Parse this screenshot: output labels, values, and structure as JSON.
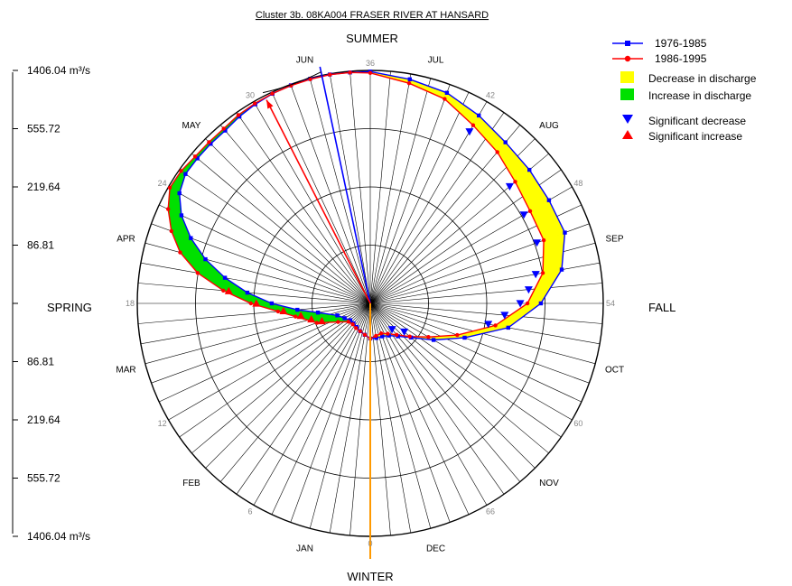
{
  "chart_data": {
    "type": "polar-line",
    "title": "Cluster 3b. 08KA004 FRASER RIVER AT HANSARD",
    "seasons": {
      "top": "SUMMER",
      "right": "FALL",
      "bottom": "WINTER",
      "left": "SPRING"
    },
    "months": [
      "JUN",
      "JUL",
      "AUG",
      "SEP",
      "OCT",
      "NOV",
      "DEC",
      "JAN",
      "FEB",
      "MAR",
      "APR",
      "MAY"
    ],
    "week_ticks": [
      "36",
      "42",
      "48",
      "54",
      "60",
      "66",
      "0",
      "6",
      "12",
      "18",
      "24",
      "30"
    ],
    "radial_axis": {
      "labels": [
        "1406.04",
        "555.72",
        "219.64",
        "86.81",
        "",
        "86.81",
        "219.64",
        "555.72",
        "1406.04"
      ],
      "unit": "m³/s",
      "scale": "log",
      "max": 1406.04,
      "min": 34.3
    },
    "series": [
      {
        "name": "1976-1985",
        "color": "#0000ff"
      },
      {
        "name": "1986-1995",
        "color": "#ff0000"
      }
    ],
    "data_weeks": [
      0,
      2,
      4,
      6,
      8,
      10,
      12,
      14,
      16,
      17,
      18,
      19,
      20,
      21,
      22,
      23,
      24,
      25,
      26,
      27,
      28,
      29,
      30,
      31,
      32,
      33,
      34,
      35,
      36,
      38,
      40,
      42,
      44,
      46,
      48,
      50,
      52,
      54,
      56,
      58,
      60,
      62,
      64,
      66,
      68,
      70
    ],
    "series_1976_1985": [
      60,
      57,
      55,
      53,
      52,
      52,
      55,
      60,
      80,
      110,
      165,
      245,
      360,
      520,
      720,
      950,
      1150,
      1250,
      1250,
      1250,
      1250,
      1300,
      1340,
      1370,
      1385,
      1395,
      1395,
      1380,
      1380,
      1290,
      1220,
      1090,
      980,
      940,
      920,
      930,
      760,
      520,
      320,
      170,
      110,
      80,
      68,
      62,
      60,
      60
    ],
    "series_1986_1995": [
      60,
      57,
      55,
      54,
      53,
      54,
      62,
      85,
      115,
      150,
      230,
      360,
      560,
      790,
      1000,
      1200,
      1370,
      1360,
      1310,
      1300,
      1300,
      1340,
      1360,
      1375,
      1380,
      1385,
      1390,
      1380,
      1350,
      1210,
      1100,
      910,
      800,
      700,
      650,
      650,
      560,
      420,
      260,
      150,
      100,
      78,
      66,
      60,
      57,
      58
    ],
    "significant_decrease_weeks": [
      42,
      46,
      48,
      50,
      52,
      53,
      54,
      55,
      56,
      62,
      64
    ],
    "significant_increase_weeks": [
      14,
      15,
      16,
      17,
      18,
      19
    ],
    "trend_lines": {
      "orange_week": 0,
      "blue_week": 33.6,
      "red_week": 30.6
    },
    "legend": {
      "series_labels": [
        "1976-1985",
        "1986-1995"
      ],
      "decrease_label": "Decrease in discharge",
      "increase_label": "Increase in discharge",
      "sig_decrease_label": "Significant decrease",
      "sig_increase_label": "Significant increase",
      "colors": {
        "decrease": "#ffff00",
        "increase": "#00e000",
        "sig_decrease": "#0000ff",
        "sig_increase": "#ff0000"
      }
    }
  }
}
